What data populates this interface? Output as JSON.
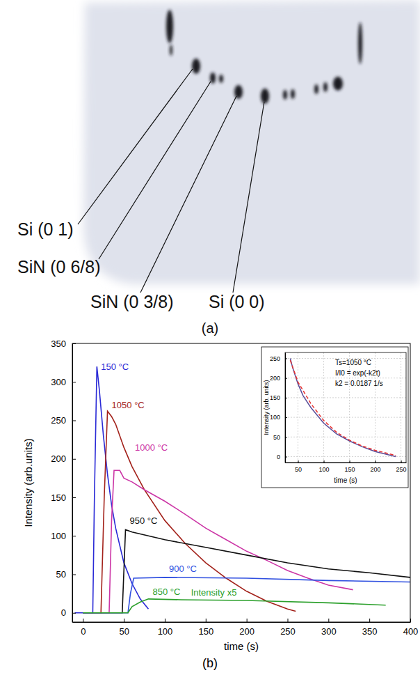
{
  "image": {
    "caption": "(a)",
    "labels": [
      "Si (0 1)",
      "SiN (0 6/8)",
      "SiN (0 3/8)",
      "Si (0 0)"
    ]
  },
  "chart_data": [
    {
      "type": "line",
      "caption": "(b)",
      "x_label": "time (s)",
      "y_label": "Intensity (arb.units)",
      "xlim": [
        -13,
        400
      ],
      "ylim": [
        -12,
        350
      ],
      "xticks": [
        0,
        50,
        100,
        150,
        200,
        250,
        300,
        350,
        400
      ],
      "yticks": [
        0,
        50,
        100,
        150,
        200,
        250,
        300,
        350
      ],
      "series": [
        {
          "name": "150 °C",
          "color": "#2a2ad6",
          "x": [
            -10,
            12,
            14,
            17,
            20,
            25,
            30,
            35,
            40,
            50,
            60,
            70,
            80
          ],
          "values": [
            0,
            0,
            150,
            320,
            290,
            230,
            180,
            140,
            110,
            65,
            38,
            18,
            5
          ]
        },
        {
          "name": "1050 °C",
          "color": "#a3221b",
          "x": [
            0,
            22,
            26,
            30,
            35,
            40,
            50,
            60,
            75,
            100,
            125,
            150,
            175,
            200,
            225,
            250,
            260
          ],
          "values": [
            0,
            0,
            150,
            262,
            255,
            245,
            215,
            190,
            160,
            120,
            90,
            65,
            45,
            28,
            15,
            5,
            2
          ]
        },
        {
          "name": "1000 °C",
          "color": "#cc36a6",
          "x": [
            0,
            32,
            35,
            38,
            45,
            50,
            60,
            75,
            100,
            125,
            150,
            175,
            200,
            225,
            250,
            275,
            300,
            330
          ],
          "values": [
            0,
            0,
            120,
            185,
            185,
            175,
            170,
            160,
            145,
            128,
            110,
            95,
            80,
            68,
            55,
            45,
            36,
            30
          ]
        },
        {
          "name": "950 °C",
          "color": "#111111",
          "x": [
            0,
            48,
            52,
            60,
            100,
            150,
            200,
            250,
            300,
            350,
            400
          ],
          "values": [
            0,
            0,
            108,
            105,
            95,
            85,
            75,
            65,
            57,
            52,
            46
          ]
        },
        {
          "name": "900 °C",
          "color": "#3050e0",
          "x": [
            0,
            55,
            58,
            62,
            100,
            200,
            300,
            400
          ],
          "values": [
            0,
            0,
            25,
            45,
            46,
            45,
            42,
            40
          ]
        },
        {
          "name": "850 °C",
          "color": "#2ca02c",
          "x": [
            0,
            55,
            60,
            70,
            80,
            120,
            200,
            300,
            370
          ],
          "values": [
            0,
            0,
            8,
            14,
            18,
            17,
            16,
            13,
            10
          ]
        }
      ],
      "annotations": [
        {
          "text": "Intensity x5",
          "x": 132,
          "y": 22,
          "color": "#2ca02c"
        }
      ]
    },
    {
      "type": "line",
      "x_label": "time (s)",
      "y_label": "Intensity (arb. units)",
      "xlim": [
        25,
        260
      ],
      "ylim": [
        -15,
        265
      ],
      "xticks": [
        50,
        100,
        150,
        200,
        250
      ],
      "yticks": [
        0,
        50,
        100,
        150,
        200,
        250
      ],
      "grid": true,
      "annotations": [
        {
          "text": "Ts=1050 °C"
        },
        {
          "text": "I/I0 = exp(-k2t)"
        },
        {
          "text": "k2 = 0.0187 1/s"
        }
      ],
      "series": [
        {
          "color": "#5a4e9a",
          "x": [
            35,
            40,
            50,
            60,
            75,
            100,
            125,
            150,
            175,
            200,
            225,
            240
          ],
          "values": [
            250,
            225,
            185,
            155,
            125,
            85,
            58,
            40,
            25,
            13,
            5,
            0
          ]
        },
        {
          "color": "#e8312f",
          "line_style": "dashed",
          "x": [
            35,
            50,
            75,
            100,
            125,
            150,
            175,
            200,
            225,
            240
          ],
          "values": [
            245,
            190,
            135,
            92,
            62,
            42,
            27,
            16,
            8,
            3
          ]
        }
      ]
    }
  ]
}
